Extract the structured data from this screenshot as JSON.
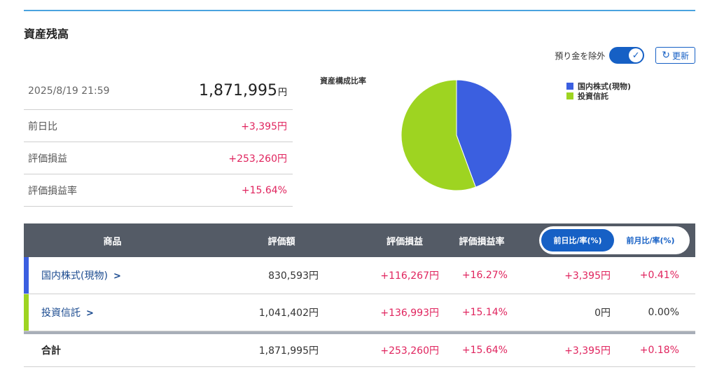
{
  "section": {
    "title": "資産残高"
  },
  "controls": {
    "exclude_deposit_label": "預り金を除外",
    "exclude_deposit_on": true,
    "refresh_label": "更新"
  },
  "summary": {
    "datetime": "2025/8/19 21:59",
    "total_value": "1,871,995",
    "total_unit": "円",
    "rows": [
      {
        "label": "前日比",
        "value": "+3,395円"
      },
      {
        "label": "評価損益",
        "value": "+253,260円"
      },
      {
        "label": "評価損益率",
        "value": "+15.64%"
      }
    ]
  },
  "chart_data": {
    "type": "pie",
    "title": "資産構成比率",
    "categories": [
      "国内株式(現物)",
      "投資信託"
    ],
    "values": [
      830593,
      1041402
    ],
    "colors": [
      "#3b5fe0",
      "#9ed421"
    ],
    "legend": "top-right"
  },
  "table": {
    "headers": {
      "product": "商品",
      "valuation": "評価額",
      "pnl": "評価損益",
      "pnl_rate": "評価損益率"
    },
    "toggle": {
      "day_label": "前日比/率(%)",
      "month_label": "前月比/率(%)",
      "active": "day"
    },
    "rows": [
      {
        "name": "国内株式(現物)",
        "valuation": "830,593円",
        "pnl": "+116,267円",
        "pnl_rate": "+16.27%",
        "change": "+3,395円",
        "change_rate": "+0.41%",
        "color": "#3b5fe0"
      },
      {
        "name": "投資信託",
        "valuation": "1,041,402円",
        "pnl": "+136,993円",
        "pnl_rate": "+15.14%",
        "change": "0円",
        "change_rate": "0.00%",
        "color": "#9ed421"
      }
    ],
    "total": {
      "label": "合計",
      "valuation": "1,871,995円",
      "pnl": "+253,260円",
      "pnl_rate": "+15.64%",
      "change": "+3,395円",
      "change_rate": "+0.18%"
    }
  }
}
